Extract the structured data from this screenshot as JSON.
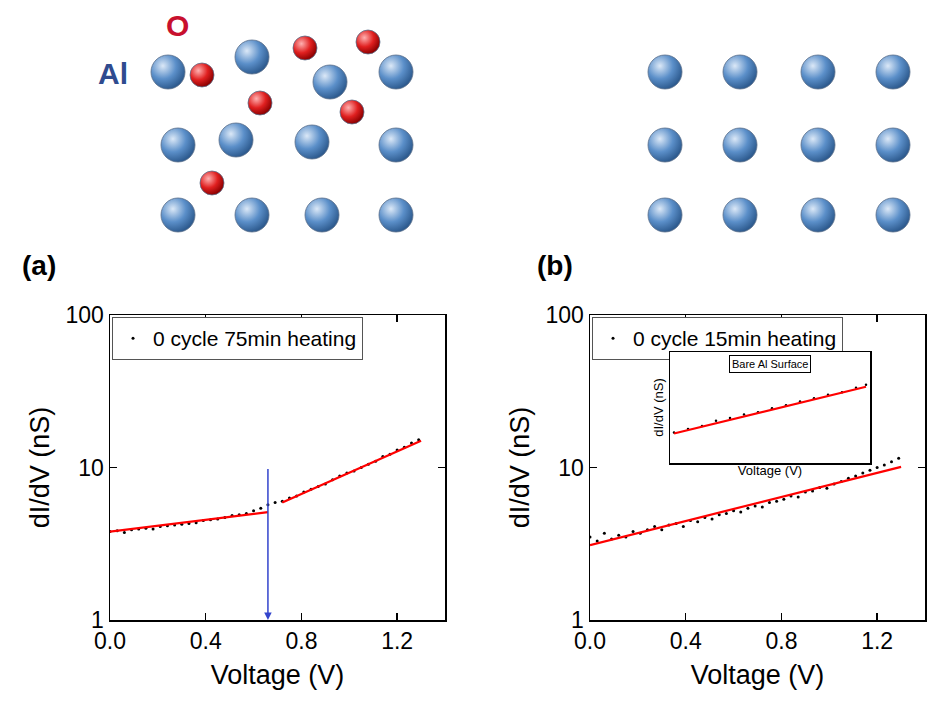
{
  "chart_data": [
    {
      "type": "scatter",
      "title": "(a)",
      "x_label": "Voltage (V)",
      "y_label": "dI/dV (nS)",
      "log": "y",
      "grid": false,
      "legend": "upper left",
      "xlim": [
        0,
        1.4
      ],
      "xticks": [
        {
          "value": 0,
          "label": "0.0"
        },
        0.4,
        0.8,
        1.2
      ],
      "ylim": [
        1,
        100
      ],
      "yticks": [
        1,
        10,
        100
      ],
      "series": [
        {
          "name": "0 cycle 75min heating",
          "type": "scatter",
          "marker": "dot",
          "color": "#000000",
          "x": [
            0.0,
            0.03,
            0.06,
            0.09,
            0.12,
            0.15,
            0.18,
            0.21,
            0.24,
            0.27,
            0.3,
            0.33,
            0.36,
            0.39,
            0.42,
            0.45,
            0.48,
            0.51,
            0.54,
            0.57,
            0.6,
            0.63,
            0.66,
            0.69,
            0.72,
            0.75,
            0.78,
            0.81,
            0.84,
            0.87,
            0.9,
            0.93,
            0.96,
            0.99,
            1.02,
            1.05,
            1.08,
            1.11,
            1.14,
            1.17,
            1.2,
            1.23,
            1.26,
            1.29
          ],
          "values": [
            3.8,
            3.85,
            3.75,
            3.9,
            3.95,
            4.0,
            3.95,
            4.1,
            4.15,
            4.2,
            4.25,
            4.3,
            4.35,
            4.5,
            4.55,
            4.6,
            4.7,
            4.85,
            4.9,
            5.0,
            5.2,
            5.4,
            5.7,
            5.9,
            6.0,
            6.3,
            6.5,
            6.9,
            7.2,
            7.5,
            7.8,
            8.3,
            8.8,
            9.2,
            9.5,
            10.0,
            10.5,
            11.0,
            11.8,
            12.2,
            13.0,
            13.6,
            14.5,
            15.2
          ]
        },
        {
          "type": "line",
          "line_style": "solid",
          "color": "#ff0000",
          "x": [
            0,
            0.66
          ],
          "values": [
            3.8,
            5.1
          ]
        },
        {
          "type": "line",
          "line_style": "solid",
          "color": "#ff0000",
          "x": [
            0.72,
            1.3
          ],
          "values": [
            5.9,
            15
          ]
        }
      ],
      "arrow": {
        "x": 0.66,
        "from": 10,
        "to": 1,
        "color": "#3344cc"
      }
    },
    {
      "type": "scatter",
      "title": "(b)",
      "x_label": "Voltage (V)",
      "y_label": "dI/dV (nS)",
      "log": "y",
      "grid": false,
      "legend": "upper left",
      "xlim": [
        0,
        1.4
      ],
      "xticks": [
        {
          "value": 0,
          "label": "0.0"
        },
        0.4,
        0.8,
        1.2
      ],
      "ylim": [
        1,
        100
      ],
      "yticks": [
        1,
        10,
        100
      ],
      "series": [
        {
          "name": "0 cycle 15min heating",
          "type": "scatter",
          "marker": "dot",
          "color": "#000000",
          "x": [
            0.0,
            0.03,
            0.06,
            0.09,
            0.12,
            0.15,
            0.18,
            0.21,
            0.24,
            0.27,
            0.3,
            0.33,
            0.36,
            0.39,
            0.42,
            0.45,
            0.48,
            0.51,
            0.54,
            0.57,
            0.6,
            0.63,
            0.66,
            0.69,
            0.72,
            0.75,
            0.78,
            0.81,
            0.84,
            0.87,
            0.9,
            0.93,
            0.96,
            0.99,
            1.02,
            1.05,
            1.08,
            1.11,
            1.14,
            1.17,
            1.2,
            1.23,
            1.26,
            1.29
          ],
          "values": [
            3.5,
            3.3,
            3.7,
            3.4,
            3.6,
            3.5,
            3.8,
            3.7,
            3.9,
            4.1,
            3.9,
            4.2,
            4.3,
            4.1,
            4.5,
            4.4,
            4.7,
            4.6,
            4.9,
            5.0,
            5.2,
            5.1,
            5.4,
            5.6,
            5.5,
            5.9,
            6.0,
            6.2,
            6.5,
            6.4,
            6.9,
            7.0,
            7.4,
            7.3,
            7.8,
            8.1,
            8.5,
            8.8,
            9.2,
            9.6,
            10.0,
            10.4,
            10.9,
            11.5
          ]
        },
        {
          "type": "line",
          "line_style": "solid",
          "color": "#ff0000",
          "x": [
            0,
            1.3
          ],
          "values": [
            3.1,
            10.1
          ]
        }
      ]
    },
    {
      "type": "scatter",
      "title": "Bare Al Surface",
      "x_label": "Voltage (V)",
      "y_label": "dI/dV (nS)",
      "log": "y",
      "grid": false,
      "tick_labels": false,
      "xlim": [
        0,
        1
      ],
      "ylim": [
        7,
        50
      ],
      "series": [
        {
          "type": "scatter",
          "marker": "dot",
          "color": "#000000",
          "x": [
            0.02,
            0.09,
            0.16,
            0.23,
            0.3,
            0.37,
            0.44,
            0.51,
            0.58,
            0.65,
            0.72,
            0.79,
            0.86,
            0.93,
            0.98
          ],
          "values": [
            12,
            12.8,
            13.5,
            14.8,
            15.5,
            16.5,
            17.2,
            18.5,
            19.5,
            20.8,
            22,
            23.5,
            24.5,
            26.5,
            28
          ]
        },
        {
          "type": "line",
          "line_style": "solid",
          "color": "#ff0000",
          "x": [
            0.02,
            0.98
          ],
          "values": [
            11.8,
            27
          ]
        }
      ]
    }
  ],
  "schematic": {
    "labels": [
      {
        "text": "Al",
        "color": "#2f4b8f"
      },
      {
        "text": "O",
        "color": "#c8102e"
      }
    ]
  }
}
